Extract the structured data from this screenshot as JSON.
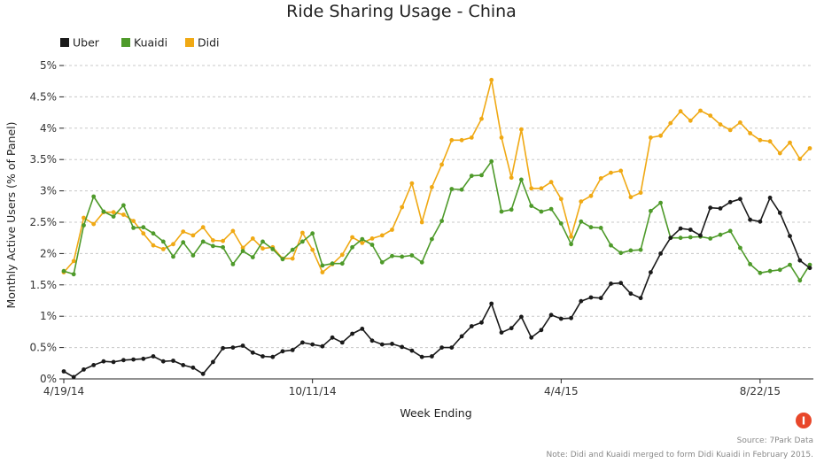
{
  "chart_data": {
    "type": "line",
    "title": "Ride Sharing Usage - China",
    "xlabel": "Week Ending",
    "ylabel": "Monthly Active Users (% of Panel)",
    "x_tick_labels": [
      "4/19/14",
      "10/11/14",
      "4/4/15",
      "8/22/15"
    ],
    "y_tick_labels": [
      "0%",
      "0.5%",
      "1%",
      "1.5%",
      "2%",
      "2.5%",
      "3%",
      "3.5%",
      "4%",
      "4.5%",
      "5%"
    ],
    "ylim": [
      0,
      5
    ],
    "grid": "horizontal dashed",
    "legend_position": "top-left",
    "x_start": "4/19/14",
    "x_interval": "weekly",
    "series": [
      {
        "name": "Uber",
        "color": "#1a1a1a",
        "values": [
          0.12,
          0.03,
          0.15,
          0.22,
          0.28,
          0.27,
          0.3,
          0.31,
          0.32,
          0.36,
          0.28,
          0.29,
          0.22,
          0.18,
          0.08,
          0.27,
          0.49,
          0.5,
          0.53,
          0.42,
          0.36,
          0.35,
          0.44,
          0.46,
          0.58,
          0.55,
          0.52,
          0.66,
          0.58,
          0.72,
          0.8,
          0.61,
          0.55,
          0.56,
          0.51,
          0.45,
          0.35,
          0.36,
          0.5,
          0.5,
          0.68,
          0.84,
          0.9,
          1.2,
          0.74,
          0.81,
          0.99,
          0.66,
          0.78,
          1.02,
          0.96,
          0.97,
          1.24,
          1.3,
          1.29,
          1.52,
          1.53,
          1.36,
          1.29,
          1.7,
          2.0,
          2.25,
          2.4,
          2.38,
          2.29,
          2.73,
          2.72,
          2.82,
          2.87,
          2.54,
          2.51,
          2.89,
          2.65,
          2.28,
          1.89,
          1.77
        ]
      },
      {
        "name": "Kuaidi",
        "color": "#4e9a2a",
        "values": [
          1.72,
          1.67,
          2.45,
          2.91,
          2.67,
          2.59,
          2.77,
          2.41,
          2.42,
          2.32,
          2.19,
          1.95,
          2.18,
          1.97,
          2.19,
          2.12,
          2.1,
          1.83,
          2.04,
          1.94,
          2.19,
          2.07,
          1.91,
          2.06,
          2.19,
          2.32,
          1.81,
          1.84,
          1.84,
          2.1,
          2.23,
          2.14,
          1.86,
          1.96,
          1.95,
          1.97,
          1.86,
          2.23,
          2.52,
          3.03,
          3.02,
          3.24,
          3.25,
          3.47,
          2.67,
          2.7,
          3.18,
          2.76,
          2.67,
          2.71,
          2.48,
          2.15,
          2.51,
          2.42,
          2.41,
          2.13,
          2.01,
          2.05,
          2.06,
          2.68,
          2.81,
          2.25,
          2.25,
          2.26,
          2.27,
          2.24,
          2.3,
          2.36,
          2.09,
          1.83,
          1.69,
          1.72,
          1.74,
          1.82,
          1.57,
          1.82
        ]
      },
      {
        "name": "Didi",
        "color": "#f0a914",
        "values": [
          1.7,
          1.88,
          2.57,
          2.47,
          2.66,
          2.66,
          2.62,
          2.52,
          2.32,
          2.13,
          2.07,
          2.15,
          2.35,
          2.29,
          2.42,
          2.21,
          2.2,
          2.36,
          2.09,
          2.24,
          2.08,
          2.1,
          1.92,
          1.92,
          2.33,
          2.06,
          1.7,
          1.83,
          1.98,
          2.26,
          2.17,
          2.24,
          2.29,
          2.38,
          2.74,
          3.12,
          2.5,
          3.06,
          3.42,
          3.81,
          3.81,
          3.85,
          4.15,
          4.77,
          3.85,
          3.21,
          3.98,
          3.04,
          3.04,
          3.14,
          2.87,
          2.27,
          2.83,
          2.92,
          3.2,
          3.29,
          3.32,
          2.9,
          2.97,
          3.85,
          3.88,
          4.08,
          4.27,
          4.12,
          4.28,
          4.2,
          4.06,
          3.97,
          4.09,
          3.92,
          3.81,
          3.79,
          3.6,
          3.77,
          3.51,
          3.68
        ]
      }
    ]
  },
  "footer": {
    "source": "Source: 7Park Data",
    "note": "Note: Didi and Kuaidi merged to form Didi Kuaidi in February 2015."
  },
  "logo": {
    "glyph": "I",
    "color": "#e8472a"
  }
}
